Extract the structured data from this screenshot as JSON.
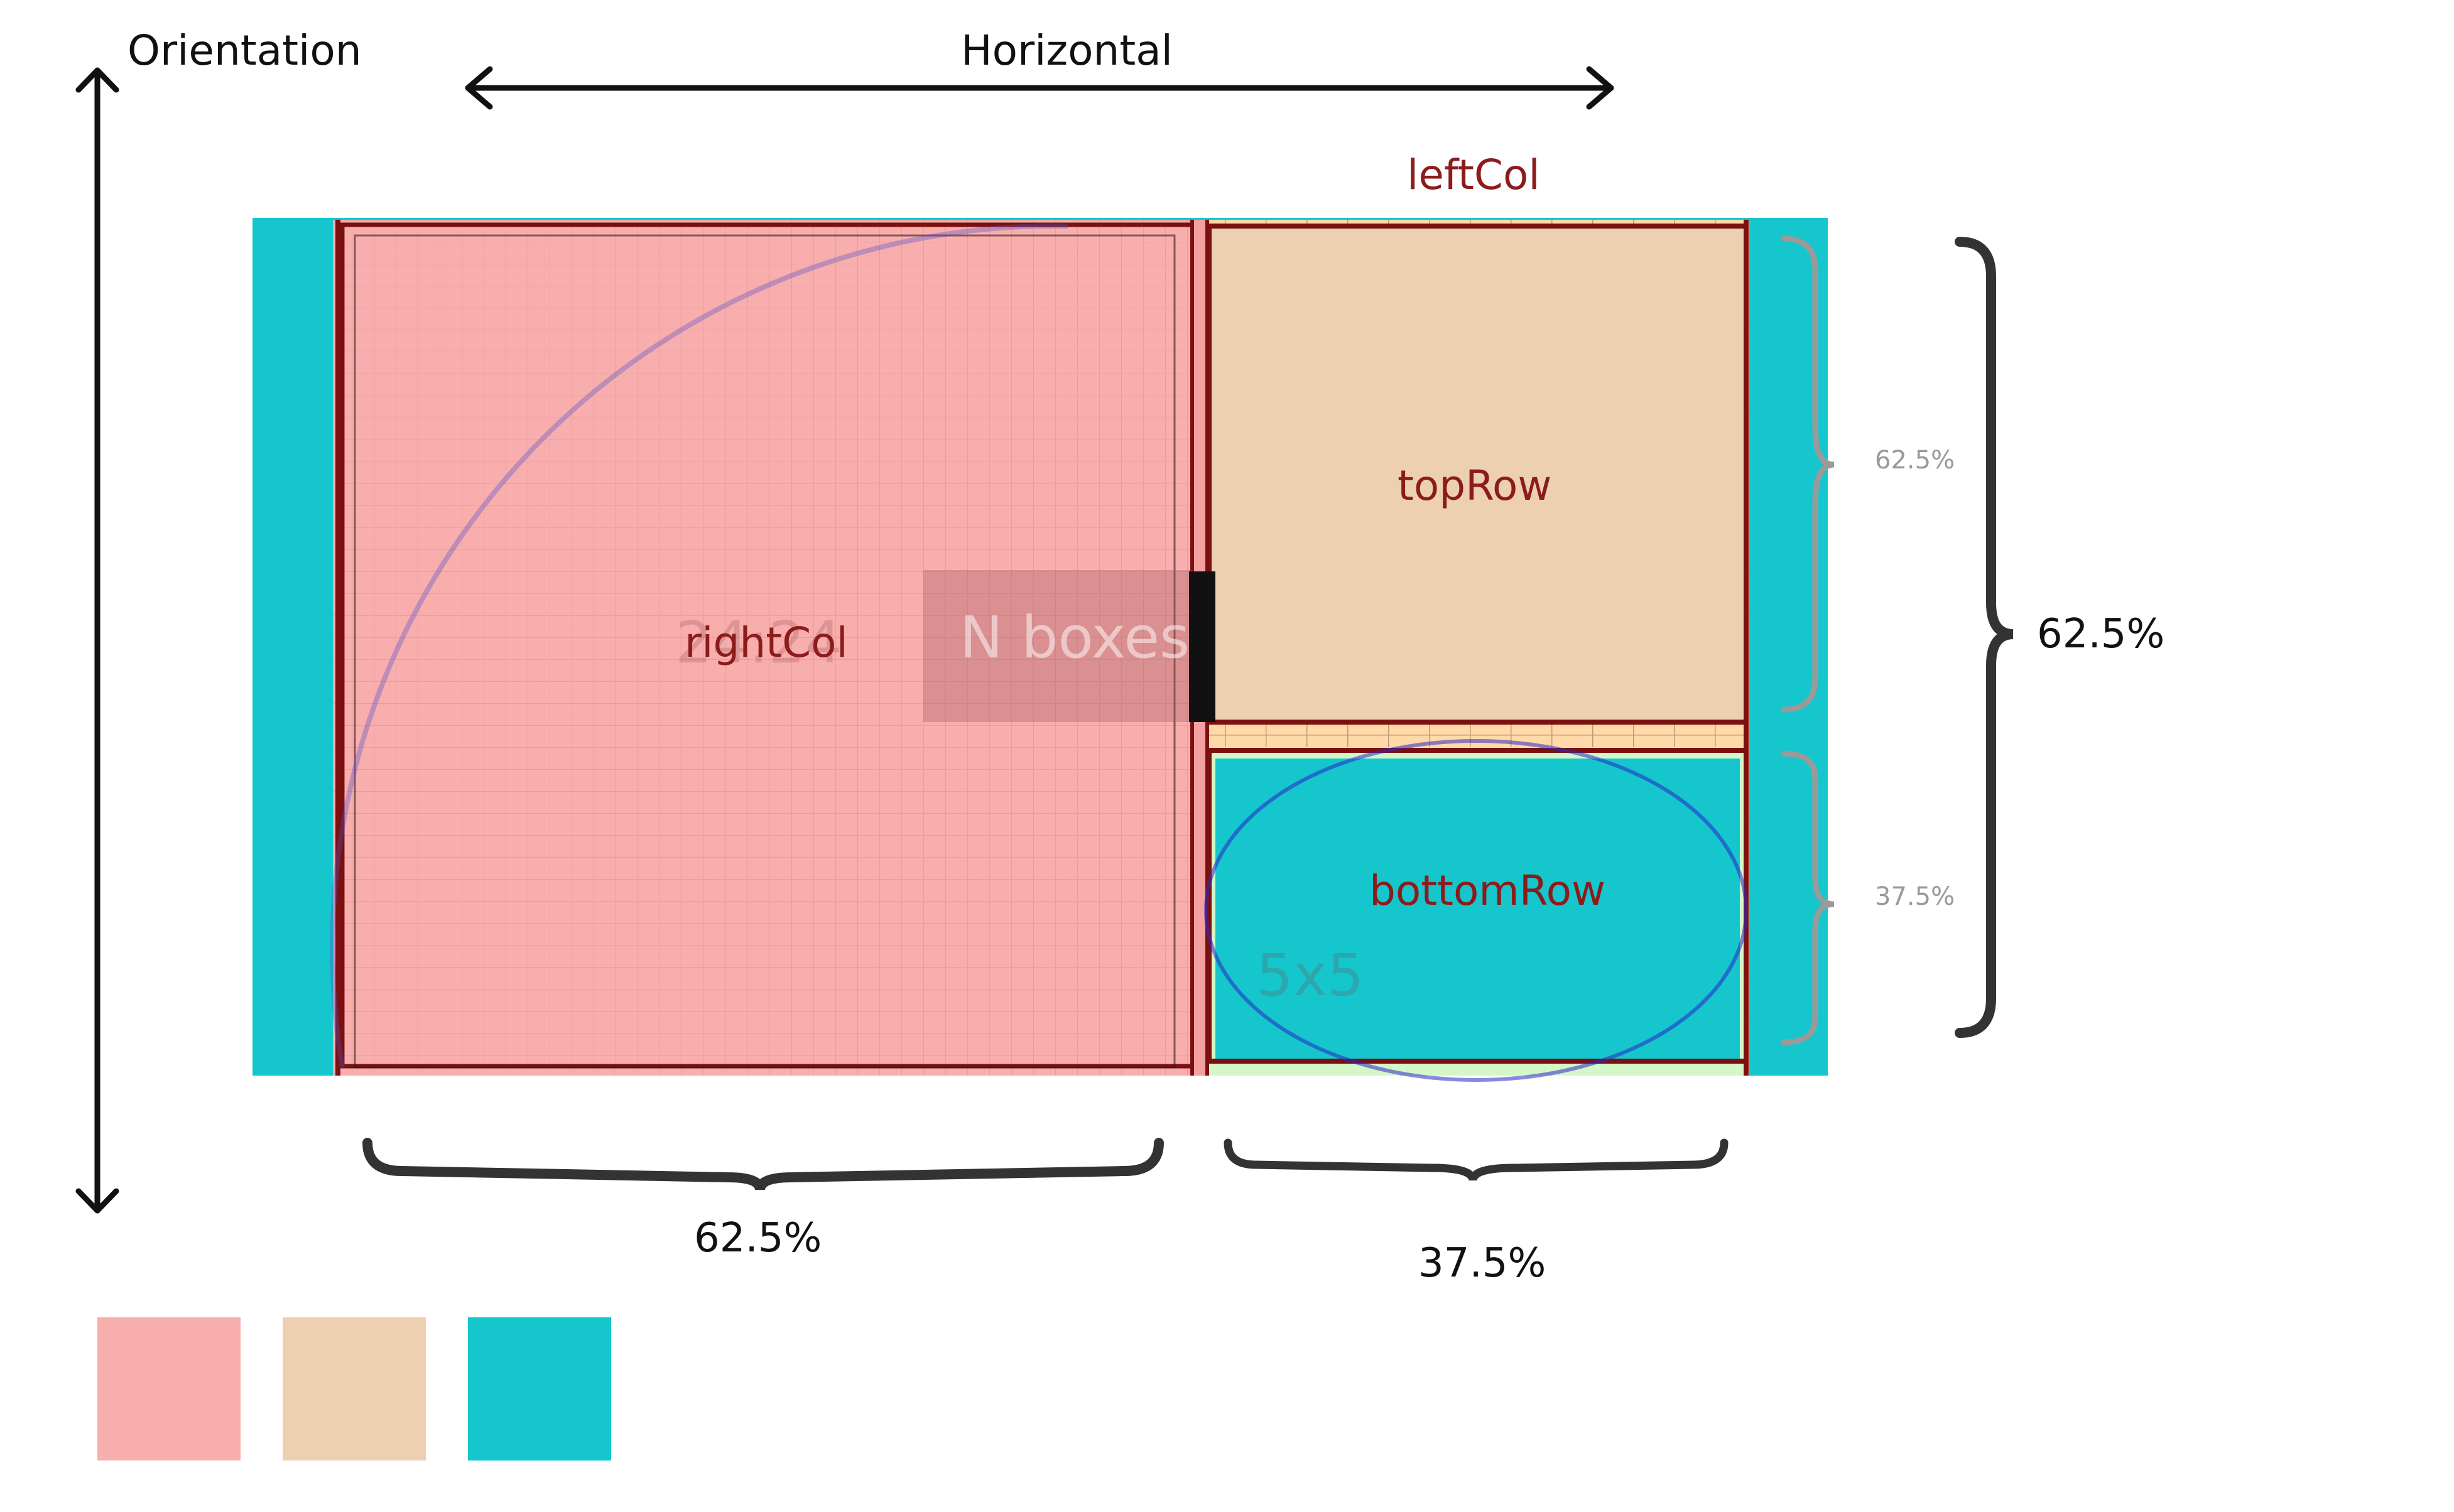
{
  "orientation_label": "Orientation",
  "horizontal_label": "Horizontal",
  "regions": {
    "right_col": "rightCol",
    "left_col": "leftCol",
    "top_row": "topRow",
    "bottom_row": "bottomRow"
  },
  "overlay_text": "N boxes",
  "faint_text": {
    "behind_right_col": "24:24",
    "in_bottom_row": "5x5"
  },
  "splits": {
    "bottom_left": "62.5%",
    "bottom_right": "37.5%",
    "right_outer": "62.5%",
    "right_inner_top": "62.5%",
    "right_inner_bottom": "37.5%"
  },
  "colors": {
    "pink": "#f9aeae",
    "tan": "#edd0b2",
    "teal": "#16c6cd",
    "dark_red": "#7a1010",
    "label_red": "#8c1c1c"
  },
  "swatches": [
    "#f9aeae",
    "#edd0b2",
    "#16c6cd"
  ]
}
